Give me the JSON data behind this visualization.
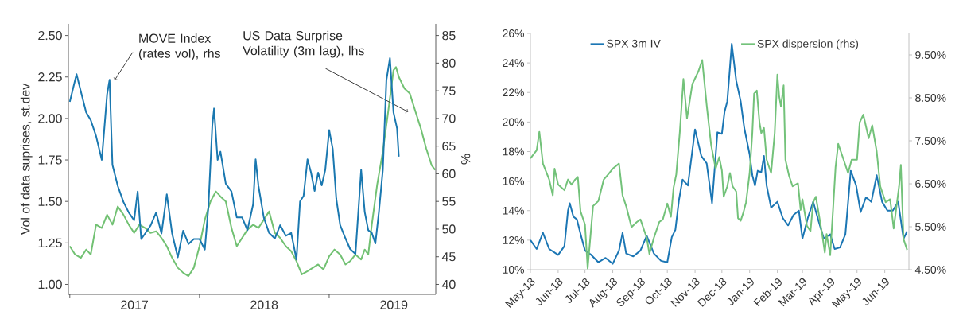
{
  "chart_data": [
    {
      "type": "line",
      "ylabel": "Vol of data suprises, st.dev",
      "y2label": "%",
      "xlim": [
        "2016-12-28",
        "2019-10-28"
      ],
      "xticks": [
        {
          "value": "2017-01-01",
          "label": null
        },
        {
          "value": "2017-07-02",
          "label": "2017"
        },
        {
          "value": "2018-01-01",
          "label": null
        },
        {
          "value": "2018-07-02",
          "label": "2018"
        },
        {
          "value": "2019-01-01",
          "label": null
        },
        {
          "value": "2019-07-02",
          "label": "2019"
        }
      ],
      "ylim": [
        0.94,
        2.57
      ],
      "yticks": [
        {
          "value": 1,
          "label": "1.00"
        },
        {
          "value": 1.25,
          "label": "1.25"
        },
        {
          "value": 1.5,
          "label": "1.50"
        },
        {
          "value": 1.75,
          "label": "1.75"
        },
        {
          "value": 2,
          "label": "2.00"
        },
        {
          "value": 2.25,
          "label": "2.25"
        },
        {
          "value": 2.5,
          "label": "2.50"
        }
      ],
      "y2lim": [
        38.2,
        87.1
      ],
      "y2ticks": [
        40,
        45,
        50,
        55,
        60,
        65,
        70,
        75,
        80,
        85
      ],
      "annotations": [
        {
          "text": "MOVE Index (rates vol), rhs",
          "x": "2017-05-07",
          "y": 2.23
        },
        {
          "text": "US Data Surprise Volatility (3m lag), lhs",
          "x": "2019-08-11",
          "y": 2.04
        }
      ],
      "series": [
        {
          "color": "#1a78b0",
          "axis": "y2",
          "x": [
            "2017-01-01",
            "2017-01-20",
            "2017-02-01",
            "2017-02-16",
            "2017-03-01",
            "2017-03-16",
            "2017-04-01",
            "2017-04-16",
            "2017-04-23",
            "2017-05-01",
            "2017-05-16",
            "2017-06-01",
            "2017-06-16",
            "2017-07-01",
            "2017-07-11",
            "2017-07-21",
            "2017-08-01",
            "2017-08-16",
            "2017-09-01",
            "2017-09-16",
            "2017-10-01",
            "2017-10-16",
            "2017-11-01",
            "2017-11-16",
            "2017-12-01",
            "2017-12-16",
            "2018-01-01",
            "2018-01-16",
            "2018-01-26",
            "2018-02-06",
            "2018-02-11",
            "2018-02-21",
            "2018-03-01",
            "2018-03-16",
            "2018-04-01",
            "2018-04-16",
            "2018-05-01",
            "2018-05-16",
            "2018-06-01",
            "2018-06-08",
            "2018-06-16",
            "2018-07-01",
            "2018-07-16",
            "2018-08-01",
            "2018-08-16",
            "2018-09-01",
            "2018-09-16",
            "2018-10-01",
            "2018-10-11",
            "2018-10-21",
            "2018-11-01",
            "2018-11-11",
            "2018-11-21",
            "2018-12-01",
            "2018-12-11",
            "2018-12-21",
            "2019-01-01",
            "2019-01-11",
            "2019-01-21",
            "2019-02-01",
            "2019-02-16",
            "2019-03-01",
            "2019-03-16",
            "2019-04-01",
            "2019-04-11",
            "2019-04-21",
            "2019-05-01",
            "2019-05-11",
            "2019-05-21",
            "2019-06-01",
            "2019-06-11",
            "2019-06-21",
            "2019-07-01",
            "2019-07-11",
            "2019-07-16"
          ],
          "values": [
            73.0,
            78.0,
            74.9,
            71.1,
            69.7,
            66.8,
            62.5,
            74.4,
            77.0,
            61.6,
            57.8,
            54.9,
            53.0,
            51.6,
            56.8,
            48.2,
            49.2,
            50.6,
            53.0,
            49.2,
            56.3,
            49.2,
            44.9,
            49.7,
            47.3,
            48.2,
            48.2,
            46.3,
            54.0,
            68.7,
            71.8,
            62.5,
            64.0,
            58.2,
            56.8,
            52.1,
            52.1,
            49.8,
            54.5,
            62.6,
            57.8,
            52.1,
            49.3,
            48.3,
            50.7,
            48.8,
            49.3,
            44.5,
            55.0,
            56.0,
            62.6,
            60.2,
            56.9,
            60.2,
            57.9,
            60.7,
            67.9,
            64.5,
            55.5,
            50.7,
            48.3,
            46.4,
            45.5,
            60.7,
            53.1,
            49.8,
            49.3,
            47.4,
            53.1,
            60.7,
            76.9,
            80.9,
            71.1,
            68.2,
            63.1
          ]
        },
        {
          "color": "#72c173",
          "x": [
            "2017-01-01",
            "2017-01-16",
            "2017-02-01",
            "2017-02-16",
            "2017-03-01",
            "2017-03-16",
            "2017-04-01",
            "2017-04-16",
            "2017-05-01",
            "2017-05-16",
            "2017-06-01",
            "2017-06-16",
            "2017-07-01",
            "2017-07-16",
            "2017-08-01",
            "2017-08-16",
            "2017-09-01",
            "2017-09-16",
            "2017-10-01",
            "2017-10-16",
            "2017-11-01",
            "2017-11-16",
            "2017-12-01",
            "2017-12-16",
            "2018-01-01",
            "2018-01-16",
            "2018-02-01",
            "2018-02-16",
            "2018-03-01",
            "2018-03-16",
            "2018-04-01",
            "2018-04-16",
            "2018-05-01",
            "2018-05-16",
            "2018-06-01",
            "2018-06-16",
            "2018-07-01",
            "2018-07-16",
            "2018-08-01",
            "2018-08-16",
            "2018-09-01",
            "2018-09-16",
            "2018-10-01",
            "2018-10-16",
            "2018-11-01",
            "2018-11-16",
            "2018-12-01",
            "2018-12-16",
            "2019-01-01",
            "2019-01-16",
            "2019-02-01",
            "2019-02-16",
            "2019-03-01",
            "2019-03-16",
            "2019-04-01",
            "2019-04-11",
            "2019-04-21",
            "2019-05-01",
            "2019-05-16",
            "2019-06-01",
            "2019-06-16",
            "2019-07-01",
            "2019-07-08",
            "2019-07-16",
            "2019-08-01",
            "2019-08-16",
            "2019-09-01",
            "2019-09-16",
            "2019-10-01",
            "2019-10-16",
            "2019-10-26"
          ],
          "values": [
            1.23,
            1.18,
            1.16,
            1.21,
            1.18,
            1.36,
            1.34,
            1.42,
            1.36,
            1.47,
            1.42,
            1.36,
            1.31,
            1.36,
            1.34,
            1.31,
            1.32,
            1.28,
            1.23,
            1.16,
            1.1,
            1.07,
            1.05,
            1.1,
            1.23,
            1.39,
            1.5,
            1.56,
            1.53,
            1.5,
            1.34,
            1.23,
            1.28,
            1.33,
            1.36,
            1.34,
            1.39,
            1.44,
            1.31,
            1.28,
            1.23,
            1.2,
            1.14,
            1.06,
            1.08,
            1.1,
            1.12,
            1.09,
            1.17,
            1.21,
            1.18,
            1.12,
            1.14,
            1.18,
            1.15,
            1.21,
            1.18,
            1.36,
            1.6,
            1.8,
            2.04,
            2.29,
            2.31,
            2.25,
            2.18,
            2.15,
            2.04,
            1.94,
            1.82,
            1.72,
            1.69
          ]
        }
      ]
    },
    {
      "type": "line",
      "legend": "top",
      "xlim": [
        "2018-05-01",
        "2019-06-28"
      ],
      "xticks": [
        {
          "value": "2018-05-01",
          "label": "May-18"
        },
        {
          "value": "2018-06-01",
          "label": "Jun-18"
        },
        {
          "value": "2018-07-01",
          "label": "Jul-18"
        },
        {
          "value": "2018-08-01",
          "label": "Aug-18"
        },
        {
          "value": "2018-09-01",
          "label": "Sep-18"
        },
        {
          "value": "2018-10-01",
          "label": "Oct-18"
        },
        {
          "value": "2018-11-01",
          "label": "Nov-18"
        },
        {
          "value": "2018-12-01",
          "label": "Dec-18"
        },
        {
          "value": "2019-01-01",
          "label": "Jan-19"
        },
        {
          "value": "2019-02-01",
          "label": "Feb-19"
        },
        {
          "value": "2019-03-01",
          "label": "Mar-19"
        },
        {
          "value": "2019-04-01",
          "label": "Apr-19"
        },
        {
          "value": "2019-05-01",
          "label": "May-19"
        },
        {
          "value": "2019-06-01",
          "label": "Jun-19"
        }
      ],
      "ylim": [
        10,
        26
      ],
      "yticks": [
        {
          "value": 10,
          "label": "10%"
        },
        {
          "value": 12,
          "label": "12%"
        },
        {
          "value": 14,
          "label": "14%"
        },
        {
          "value": 16,
          "label": "16%"
        },
        {
          "value": 18,
          "label": "18%"
        },
        {
          "value": 20,
          "label": "20%"
        },
        {
          "value": 22,
          "label": "22%"
        },
        {
          "value": 24,
          "label": "24%"
        },
        {
          "value": 26,
          "label": "26%"
        }
      ],
      "y2lim": [
        4.5,
        10
      ],
      "y2ticks": [
        {
          "value": 4.5,
          "label": "4.50%"
        },
        {
          "value": 5.5,
          "label": "5.50%"
        },
        {
          "value": 6.5,
          "label": "6.50%"
        },
        {
          "value": 7.5,
          "label": "7.50%"
        },
        {
          "value": 8.5,
          "label": "8.50%"
        },
        {
          "value": 9.5,
          "label": "9.50%"
        }
      ],
      "series": [
        {
          "name": "SPX 3m IV",
          "color": "#1b76b4",
          "x": [
            "2018-05-01",
            "2018-05-08",
            "2018-05-15",
            "2018-05-22",
            "2018-06-01",
            "2018-06-08",
            "2018-06-12",
            "2018-06-14",
            "2018-06-18",
            "2018-06-22",
            "2018-06-27",
            "2018-07-01",
            "2018-07-08",
            "2018-07-16",
            "2018-07-24",
            "2018-08-01",
            "2018-08-08",
            "2018-08-12",
            "2018-08-16",
            "2018-08-24",
            "2018-09-01",
            "2018-09-08",
            "2018-09-16",
            "2018-09-24",
            "2018-10-01",
            "2018-10-06",
            "2018-10-10",
            "2018-10-14",
            "2018-10-18",
            "2018-10-24",
            "2018-11-01",
            "2018-11-08",
            "2018-11-14",
            "2018-11-20",
            "2018-11-26",
            "2018-12-01",
            "2018-12-04",
            "2018-12-07",
            "2018-12-10",
            "2018-12-12",
            "2018-12-14",
            "2018-12-17",
            "2018-12-22",
            "2018-12-26",
            "2019-01-01",
            "2019-01-04",
            "2019-01-07",
            "2019-01-10",
            "2019-01-14",
            "2019-01-17",
            "2019-01-20",
            "2019-01-25",
            "2019-02-01",
            "2019-02-07",
            "2019-02-13",
            "2019-02-19",
            "2019-02-25",
            "2019-03-01",
            "2019-03-07",
            "2019-03-13",
            "2019-03-19",
            "2019-03-25",
            "2019-04-01",
            "2019-04-06",
            "2019-04-12",
            "2019-04-18",
            "2019-04-24",
            "2019-04-30",
            "2019-05-05",
            "2019-05-11",
            "2019-05-17",
            "2019-05-23",
            "2019-05-29",
            "2019-06-04",
            "2019-06-10",
            "2019-06-16",
            "2019-06-22",
            "2019-06-26"
          ],
          "values": [
            12.0,
            11.4,
            12.5,
            11.4,
            11.0,
            11.6,
            14.0,
            14.5,
            13.6,
            13.4,
            12.2,
            11.3,
            11.0,
            10.5,
            10.8,
            10.4,
            11.3,
            12.5,
            11.1,
            10.9,
            11.3,
            12.3,
            11.1,
            10.6,
            10.5,
            12.2,
            12.7,
            14.7,
            16.1,
            15.7,
            19.5,
            17.7,
            17.2,
            14.5,
            19.3,
            19.2,
            20.7,
            21.4,
            23.7,
            25.3,
            24.3,
            22.8,
            21.4,
            19.6,
            17.8,
            16.4,
            15.7,
            16.7,
            16.6,
            17.7,
            15.7,
            14.2,
            14.6,
            13.5,
            13.0,
            13.7,
            14.0,
            12.1,
            13.5,
            14.6,
            13.3,
            12.1,
            12.4,
            11.4,
            11.5,
            12.4,
            16.7,
            15.7,
            13.9,
            14.9,
            14.6,
            16.4,
            14.6,
            14.0,
            14.0,
            14.6,
            12.1,
            12.6
          ]
        },
        {
          "name": "SPX dispersion (rhs)",
          "color": "#73c27a",
          "axis": "y2",
          "x": [
            "2018-05-01",
            "2018-05-08",
            "2018-05-11",
            "2018-05-15",
            "2018-05-22",
            "2018-05-26",
            "2018-05-28",
            "2018-06-01",
            "2018-06-08",
            "2018-06-12",
            "2018-06-16",
            "2018-06-20",
            "2018-06-23",
            "2018-06-26",
            "2018-07-01",
            "2018-07-04",
            "2018-07-10",
            "2018-07-16",
            "2018-07-22",
            "2018-07-27",
            "2018-08-01",
            "2018-08-08",
            "2018-08-12",
            "2018-08-16",
            "2018-08-22",
            "2018-08-28",
            "2018-09-01",
            "2018-09-08",
            "2018-09-11",
            "2018-09-16",
            "2018-09-22",
            "2018-09-26",
            "2018-10-01",
            "2018-10-05",
            "2018-10-08",
            "2018-10-11",
            "2018-10-15",
            "2018-10-19",
            "2018-10-23",
            "2018-10-29",
            "2018-11-05",
            "2018-11-09",
            "2018-11-14",
            "2018-11-19",
            "2018-11-24",
            "2018-11-28",
            "2018-12-01",
            "2018-12-03",
            "2018-12-07",
            "2018-12-10",
            "2018-12-13",
            "2018-12-17",
            "2018-12-19",
            "2018-12-22",
            "2018-12-25",
            "2018-12-28",
            "2019-01-01",
            "2019-01-04",
            "2019-01-06",
            "2019-01-09",
            "2019-01-12",
            "2019-01-14",
            "2019-01-17",
            "2019-01-20",
            "2019-01-25",
            "2019-01-29",
            "2019-02-01",
            "2019-02-03",
            "2019-02-05",
            "2019-02-08",
            "2019-02-10",
            "2019-02-14",
            "2019-02-18",
            "2019-02-24",
            "2019-02-27",
            "2019-03-01",
            "2019-03-06",
            "2019-03-10",
            "2019-03-13",
            "2019-03-16",
            "2019-03-19",
            "2019-03-23",
            "2019-03-26",
            "2019-03-28",
            "2019-04-01",
            "2019-04-04",
            "2019-04-07",
            "2019-04-10",
            "2019-04-16",
            "2019-04-21",
            "2019-04-25",
            "2019-05-01",
            "2019-05-04",
            "2019-05-08",
            "2019-05-14",
            "2019-05-18",
            "2019-05-23",
            "2019-05-27",
            "2019-06-02",
            "2019-06-07",
            "2019-06-11",
            "2019-06-17",
            "2019-06-19",
            "2019-06-22",
            "2019-06-26"
          ],
          "values": [
            7.09,
            7.28,
            7.71,
            6.97,
            6.6,
            6.23,
            6.85,
            6.48,
            6.35,
            6.6,
            6.48,
            6.6,
            6.66,
            5.86,
            5.55,
            4.53,
            5.98,
            6.1,
            6.6,
            6.72,
            6.85,
            6.97,
            6.23,
            5.98,
            5.49,
            5.61,
            5.67,
            5.24,
            4.87,
            5.24,
            5.61,
            5.67,
            6.04,
            5.73,
            6.41,
            6.72,
            7.71,
            8.94,
            8.02,
            8.82,
            9.13,
            9.38,
            8.33,
            7.4,
            6.85,
            7.12,
            6.81,
            6.2,
            6.44,
            6.75,
            6.44,
            6.32,
            5.7,
            5.64,
            5.83,
            6.07,
            6.75,
            7.68,
            8.6,
            8.67,
            7.93,
            7.68,
            7.8,
            7.06,
            6.75,
            7.68,
            9.04,
            8.54,
            8.3,
            8.79,
            7.06,
            6.69,
            6.44,
            6.51,
            5.89,
            6.14,
            5.52,
            5.4,
            6.07,
            6.2,
            5.83,
            5.33,
            4.9,
            5.33,
            4.84,
            5.83,
            6.88,
            7.43,
            7.06,
            6.75,
            7.06,
            7.06,
            7.93,
            8.11,
            7.56,
            7.86,
            7.25,
            6.44,
            6.07,
            6.14,
            5.46,
            6.44,
            6.94,
            5.21,
            4.96
          ]
        }
      ]
    }
  ]
}
